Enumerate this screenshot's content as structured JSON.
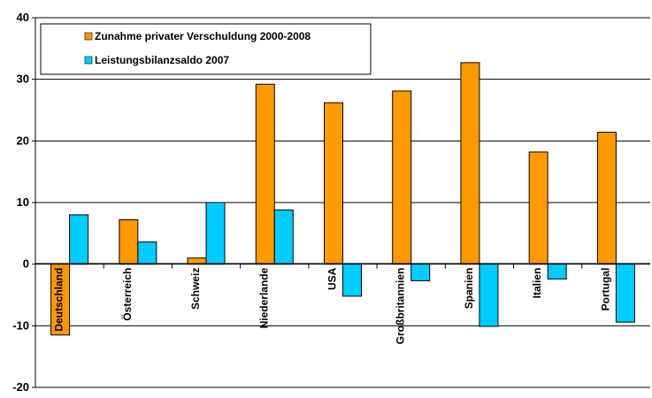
{
  "chart_data": {
    "type": "bar",
    "categories": [
      "Deutschland",
      "Österreich",
      "Schweiz",
      "Niederlande",
      "USA",
      "Großbritannien",
      "Spanien",
      "Italien",
      "Portugal"
    ],
    "series": [
      {
        "name": "Zunahme privater Verschuldung 2000-2008",
        "color": "#FF9900",
        "values": [
          -11.5,
          7.2,
          1.0,
          29.2,
          26.2,
          28.1,
          32.7,
          18.2,
          21.4
        ]
      },
      {
        "name": "Leistungsbilanzsaldo 2007",
        "color": "#00CCFF",
        "values": [
          8.0,
          3.6,
          10.0,
          8.8,
          -5.2,
          -2.7,
          -10.1,
          -2.4,
          -9.4
        ]
      }
    ],
    "ylim": [
      -20,
      40
    ],
    "yticks": [
      -20,
      -10,
      0,
      10,
      20,
      30,
      40
    ],
    "grid": true,
    "legend_position": "top-left"
  }
}
